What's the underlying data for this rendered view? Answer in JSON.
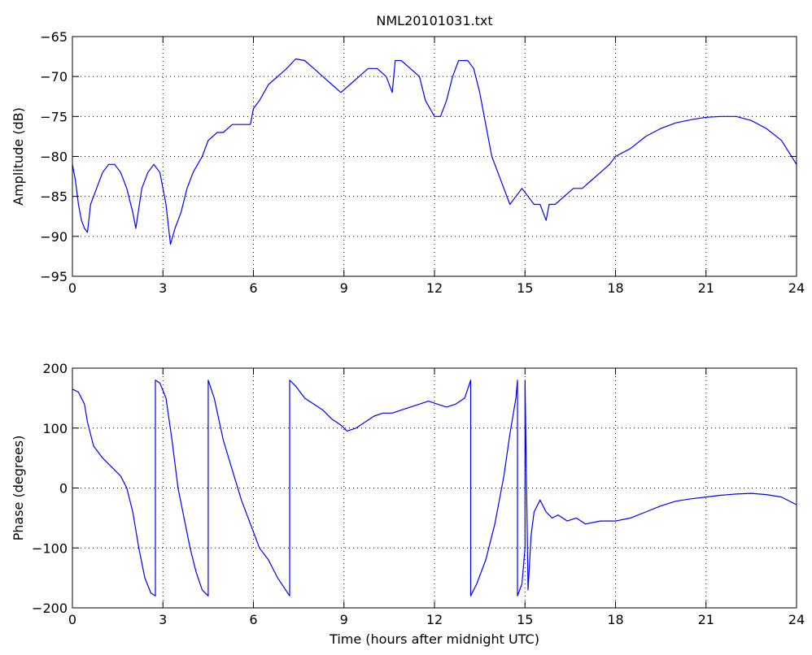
{
  "chart_data": [
    {
      "type": "line",
      "title": "NML20101031.txt",
      "xlabel": "",
      "ylabel": "Amplitude (dB)",
      "xlim": [
        0,
        24
      ],
      "ylim": [
        -95,
        -65
      ],
      "xticks": [
        0,
        3,
        6,
        9,
        12,
        15,
        18,
        21,
        24
      ],
      "yticks": [
        -95,
        -90,
        -85,
        -80,
        -75,
        -70,
        -65
      ],
      "grid": true,
      "series_color": "#0000ff",
      "series": [
        {
          "x": [
            0,
            0.1,
            0.2,
            0.3,
            0.4,
            0.5,
            0.6,
            0.8,
            1.0,
            1.2,
            1.4,
            1.6,
            1.8,
            2.0,
            2.1,
            2.3,
            2.5,
            2.7,
            2.9,
            3.1,
            3.25,
            3.4,
            3.6,
            3.8,
            4.0,
            4.3,
            4.5,
            4.8,
            5.0,
            5.3,
            5.6,
            5.9,
            6.0,
            6.2,
            6.5,
            6.8,
            7.1,
            7.4,
            7.7,
            8.0,
            8.3,
            8.6,
            8.9,
            9.2,
            9.5,
            9.8,
            10.1,
            10.4,
            10.6,
            10.7,
            10.9,
            11.2,
            11.5,
            11.7,
            12.0,
            12.2,
            12.4,
            12.6,
            12.8,
            13.1,
            13.3,
            13.5,
            13.7,
            13.9,
            14.1,
            14.3,
            14.5,
            14.7,
            14.9,
            15.1,
            15.3,
            15.5,
            15.7,
            15.8,
            16.0,
            16.3,
            16.6,
            16.9,
            17.2,
            17.5,
            17.8,
            18.0,
            18.5,
            19.0,
            19.5,
            20.0,
            20.5,
            21.0,
            21.5,
            22.0,
            22.5,
            23.0,
            23.5,
            24.0
          ],
          "y": [
            -81,
            -83,
            -86,
            -88,
            -89,
            -89.5,
            -86,
            -84,
            -82,
            -81,
            -81,
            -82,
            -84,
            -87,
            -89,
            -84,
            -82,
            -81,
            -82,
            -86,
            -91,
            -89,
            -87,
            -84,
            -82,
            -80,
            -78,
            -77,
            -77,
            -76,
            -76,
            -76,
            -74,
            -73,
            -71,
            -70,
            -69,
            -67.8,
            -68,
            -69,
            -70,
            -71,
            -72,
            -71,
            -70,
            -69,
            -69,
            -70,
            -72,
            -68,
            -68,
            -69,
            -70,
            -73,
            -75,
            -75,
            -73,
            -70,
            -68,
            -68,
            -69,
            -72,
            -76,
            -80,
            -82,
            -84,
            -86,
            -85,
            -84,
            -85,
            -86,
            -86,
            -88,
            -86,
            -86,
            -85,
            -84,
            -84,
            -83,
            -82,
            -81,
            -80,
            -79,
            -77.5,
            -76.5,
            -75.8,
            -75.4,
            -75.1,
            -75,
            -75,
            -75.5,
            -76.5,
            -78,
            -81
          ]
        }
      ]
    },
    {
      "type": "line",
      "title": "",
      "xlabel": "Time (hours after midnight UTC)",
      "ylabel": "Phase (degrees)",
      "xlim": [
        0,
        24
      ],
      "ylim": [
        -200,
        200
      ],
      "xticks": [
        0,
        3,
        6,
        9,
        12,
        15,
        18,
        21,
        24
      ],
      "yticks": [
        -200,
        -100,
        0,
        100,
        200
      ],
      "grid": true,
      "series_color": "#0000ff",
      "series": [
        {
          "x": [
            0,
            0.2,
            0.4,
            0.5,
            0.7,
            1.0,
            1.3,
            1.6,
            1.8,
            2.0,
            2.2,
            2.4,
            2.6,
            2.75,
            2.75,
            2.9,
            3.1,
            3.3,
            3.5,
            3.7,
            3.9,
            4.1,
            4.3,
            4.5,
            4.5,
            4.7,
            5.0,
            5.3,
            5.6,
            5.9,
            6.2,
            6.5,
            6.8,
            7.0,
            7.2,
            7.2,
            7.4,
            7.7,
            8.0,
            8.3,
            8.6,
            8.9,
            9.1,
            9.4,
            9.7,
            10.0,
            10.3,
            10.6,
            10.9,
            11.2,
            11.5,
            11.8,
            12.1,
            12.4,
            12.7,
            13.0,
            13.2,
            13.2,
            13.4,
            13.7,
            14.0,
            14.3,
            14.5,
            14.7,
            14.75,
            14.75,
            14.9,
            15.0,
            15.0,
            15.1,
            15.2,
            15.3,
            15.5,
            15.7,
            15.9,
            16.1,
            16.4,
            16.7,
            17.0,
            17.5,
            18.0,
            18.5,
            19.0,
            19.5,
            20.0,
            20.5,
            21.0,
            21.5,
            22.0,
            22.5,
            23.0,
            23.5,
            24.0
          ],
          "y": [
            165,
            160,
            140,
            110,
            70,
            50,
            35,
            20,
            0,
            -40,
            -100,
            -150,
            -175,
            -180,
            180,
            175,
            150,
            80,
            0,
            -50,
            -100,
            -140,
            -170,
            -180,
            180,
            150,
            80,
            30,
            -20,
            -60,
            -100,
            -120,
            -150,
            -165,
            -180,
            180,
            170,
            150,
            140,
            130,
            115,
            105,
            95,
            100,
            110,
            120,
            125,
            125,
            130,
            135,
            140,
            145,
            140,
            135,
            140,
            150,
            180,
            -180,
            -160,
            -120,
            -60,
            20,
            90,
            150,
            180,
            -180,
            -160,
            -100,
            180,
            -170,
            -80,
            -40,
            -20,
            -40,
            -50,
            -45,
            -55,
            -50,
            -60,
            -55,
            -55,
            -50,
            -40,
            -30,
            -22,
            -18,
            -15,
            -12,
            -10,
            -9,
            -11,
            -15,
            -28
          ]
        }
      ]
    }
  ]
}
